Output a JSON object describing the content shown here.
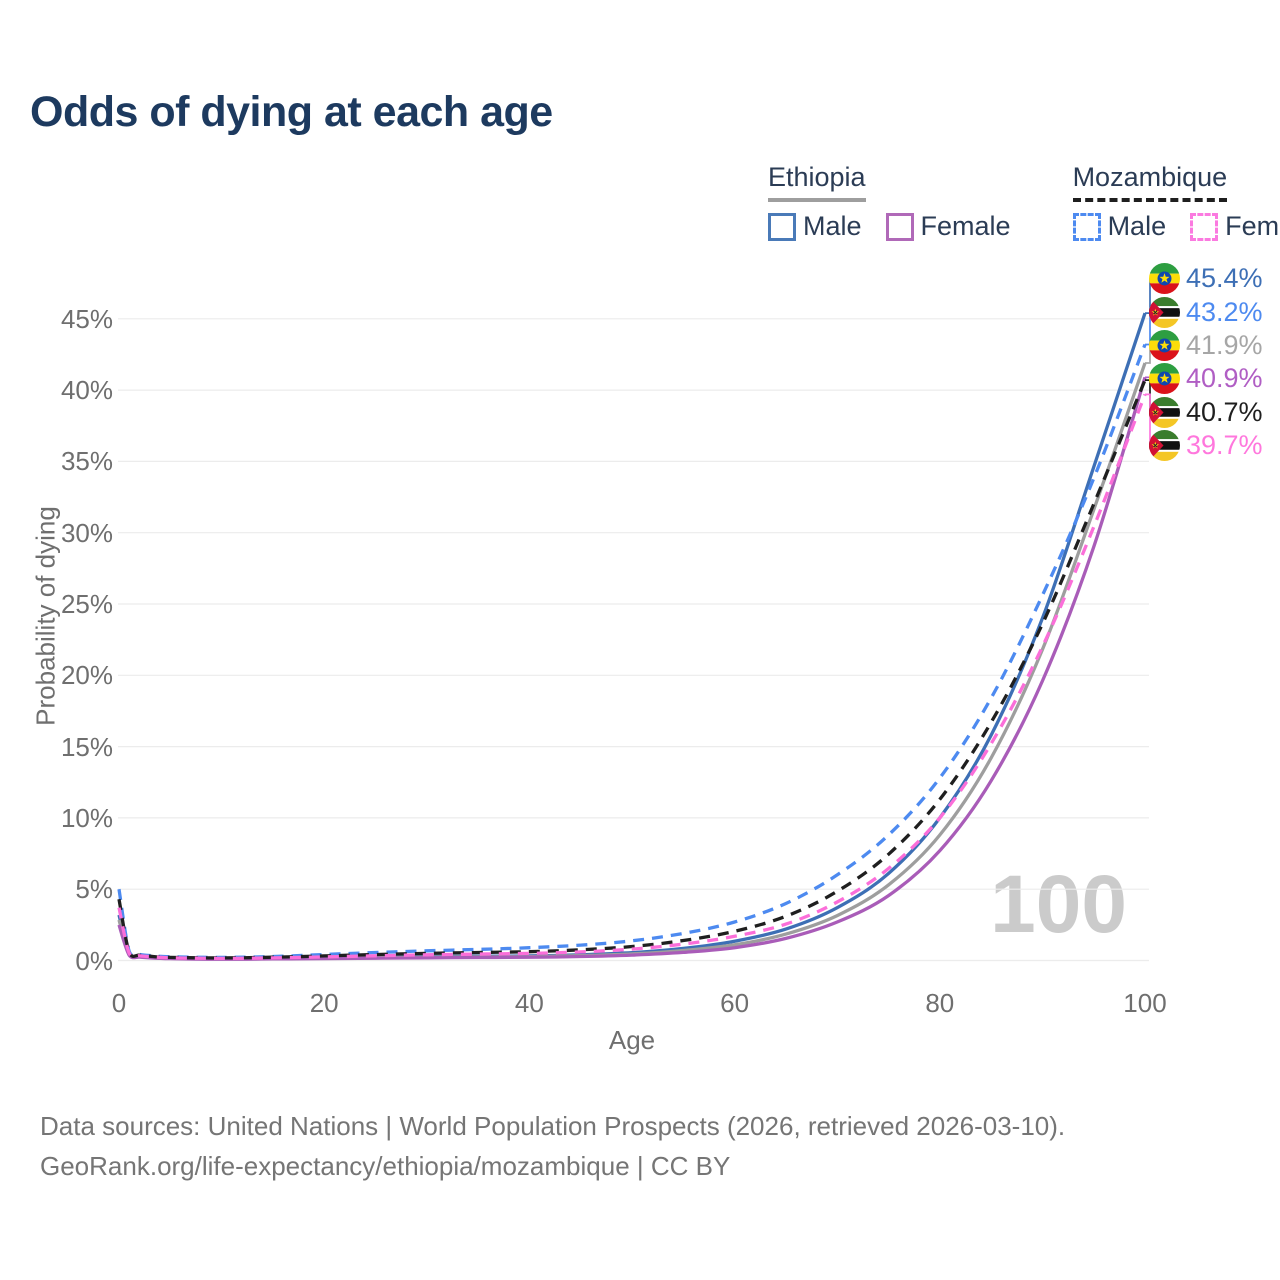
{
  "title": "Odds of dying at each age",
  "legend": {
    "ethiopia": {
      "label": "Ethiopia",
      "male": "Male",
      "female": "Female"
    },
    "mozambique": {
      "label": "Mozambique",
      "male": "Male",
      "female": "Female"
    }
  },
  "watermark": {
    "text": "100"
  },
  "footer": {
    "line1": "Data sources: United Nations | World Population Prospects (2026, retrieved 2026-03-10).",
    "line2": "GeoRank.org/life-expectancy/ethiopia/mozambique | CC BY"
  },
  "colors": {
    "title": "#1d3a5f",
    "grid": "#ececec",
    "tick_text": "#6f6f6f",
    "ethiopia_underline": "#9e9e9e",
    "mozambique_underline": "#1f1f1f"
  },
  "chart_data": {
    "type": "line",
    "title": "Odds of dying at each age",
    "xlabel": "Age",
    "ylabel": "Probability of dying",
    "xlim": [
      0,
      100
    ],
    "ylim_pct": [
      0,
      47
    ],
    "grid": "horizontal",
    "x_ticks": [
      "0",
      "20",
      "40",
      "60",
      "80",
      "100"
    ],
    "x_tick_values": [
      0,
      20,
      40,
      60,
      80,
      100
    ],
    "y_ticks": [
      "0%",
      "5%",
      "10%",
      "15%",
      "20%",
      "25%",
      "30%",
      "35%",
      "40%",
      "45%"
    ],
    "y_tick_values": [
      0,
      5,
      10,
      15,
      20,
      25,
      30,
      35,
      40,
      45
    ],
    "x": [
      0,
      1,
      2,
      3,
      5,
      10,
      15,
      20,
      25,
      30,
      35,
      40,
      45,
      50,
      55,
      60,
      65,
      70,
      75,
      80,
      85,
      90,
      95,
      100
    ],
    "series": [
      {
        "key": "ethiopia-male",
        "name": "Ethiopia Male",
        "color": "#3d6fb5",
        "dash": "solid",
        "values": [
          3.2,
          0.45,
          0.3,
          0.25,
          0.18,
          0.13,
          0.16,
          0.2,
          0.24,
          0.28,
          0.3,
          0.32,
          0.4,
          0.55,
          0.85,
          1.35,
          2.2,
          3.7,
          6.1,
          10.0,
          15.8,
          24.0,
          34.6,
          45.4
        ]
      },
      {
        "key": "ethiopia-total",
        "name": "Ethiopia",
        "color": "#9e9e9e",
        "dash": "solid",
        "values": [
          2.85,
          0.4,
          0.27,
          0.22,
          0.15,
          0.11,
          0.14,
          0.17,
          0.2,
          0.23,
          0.25,
          0.27,
          0.34,
          0.46,
          0.7,
          1.1,
          1.85,
          3.15,
          5.3,
          8.8,
          14.2,
          21.8,
          31.6,
          41.9
        ]
      },
      {
        "key": "ethiopia-female",
        "name": "Ethiopia Female",
        "color": "#a95cb8",
        "dash": "solid",
        "values": [
          2.5,
          0.36,
          0.24,
          0.19,
          0.13,
          0.09,
          0.11,
          0.13,
          0.16,
          0.19,
          0.21,
          0.23,
          0.28,
          0.38,
          0.57,
          0.9,
          1.55,
          2.7,
          4.55,
          7.7,
          12.6,
          19.6,
          29.0,
          40.9
        ]
      },
      {
        "key": "mozambique-male",
        "name": "Mozambique Male",
        "color": "#4d8af0",
        "dash": "dashed",
        "values": [
          5.0,
          0.62,
          0.42,
          0.35,
          0.26,
          0.22,
          0.28,
          0.42,
          0.56,
          0.68,
          0.78,
          0.9,
          1.08,
          1.38,
          1.9,
          2.7,
          4.0,
          6.0,
          8.8,
          12.8,
          18.4,
          25.6,
          33.8,
          43.2
        ]
      },
      {
        "key": "mozambique-total",
        "name": "Mozambique",
        "color": "#1f1f1f",
        "dash": "dashed",
        "values": [
          4.3,
          0.55,
          0.37,
          0.3,
          0.22,
          0.18,
          0.23,
          0.32,
          0.42,
          0.5,
          0.56,
          0.62,
          0.75,
          0.98,
          1.4,
          2.05,
          3.1,
          4.85,
          7.45,
          11.3,
          16.7,
          23.6,
          32.0,
          40.7
        ]
      },
      {
        "key": "mozambique-female",
        "name": "Mozambique Female",
        "color": "#fb6ed9",
        "dash": "dashed",
        "values": [
          3.7,
          0.5,
          0.33,
          0.27,
          0.19,
          0.15,
          0.18,
          0.25,
          0.33,
          0.4,
          0.45,
          0.5,
          0.6,
          0.8,
          1.15,
          1.7,
          2.55,
          4.1,
          6.45,
          10.0,
          15.2,
          22.0,
          30.4,
          39.7
        ]
      }
    ],
    "end_labels": [
      {
        "series": "ethiopia-male",
        "value": "45.4%",
        "flag": "ethiopia",
        "color": "#3d6fb5"
      },
      {
        "series": "mozambique-male",
        "value": "43.2%",
        "flag": "mozambique",
        "color": "#4d8af0"
      },
      {
        "series": "ethiopia-total",
        "value": "41.9%",
        "flag": "ethiopia",
        "color": "#a6a6a6"
      },
      {
        "series": "ethiopia-female",
        "value": "40.9%",
        "flag": "ethiopia",
        "color": "#b05ec4"
      },
      {
        "series": "mozambique-total",
        "value": "40.7%",
        "flag": "mozambique",
        "color": "#1f1f1f"
      },
      {
        "series": "mozambique-female",
        "value": "39.7%",
        "flag": "mozambique",
        "color": "#ff77dd"
      }
    ]
  }
}
